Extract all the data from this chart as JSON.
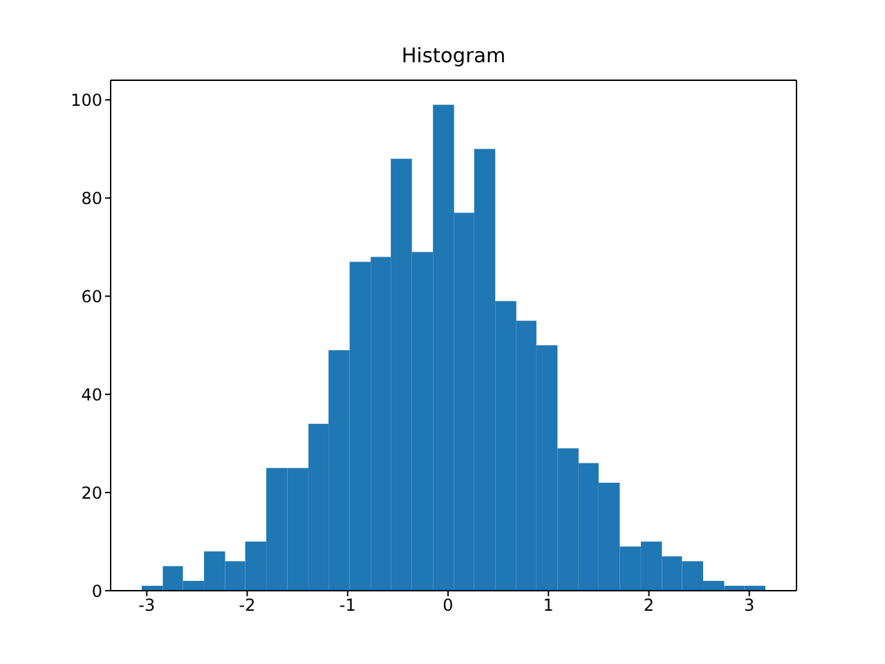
{
  "chart_data": {
    "type": "histogram",
    "title": "Histogram",
    "bins": [
      -3.05,
      -2.84,
      -2.64,
      -2.43,
      -2.22,
      -2.02,
      -1.81,
      -1.6,
      -1.39,
      -1.19,
      -0.98,
      -0.77,
      -0.57,
      -0.36,
      -0.15,
      0.06,
      0.26,
      0.47,
      0.68,
      0.88,
      1.09,
      1.3,
      1.5,
      1.71,
      1.92,
      2.13,
      2.33,
      2.54,
      2.75,
      2.95,
      3.16
    ],
    "values": [
      1,
      5,
      2,
      8,
      6,
      10,
      25,
      25,
      34,
      49,
      67,
      68,
      88,
      69,
      99,
      77,
      90,
      59,
      55,
      50,
      29,
      26,
      22,
      9,
      10,
      7,
      6,
      2,
      1,
      1
    ],
    "color": "#1f77b4",
    "xlim": [
      -3.36,
      3.47
    ],
    "xticks": [
      -3,
      -2,
      -1,
      0,
      1,
      2,
      3
    ],
    "ylim": [
      0,
      104
    ],
    "yticks": [
      0,
      20,
      40,
      60,
      80,
      100
    ],
    "grid": false
  }
}
